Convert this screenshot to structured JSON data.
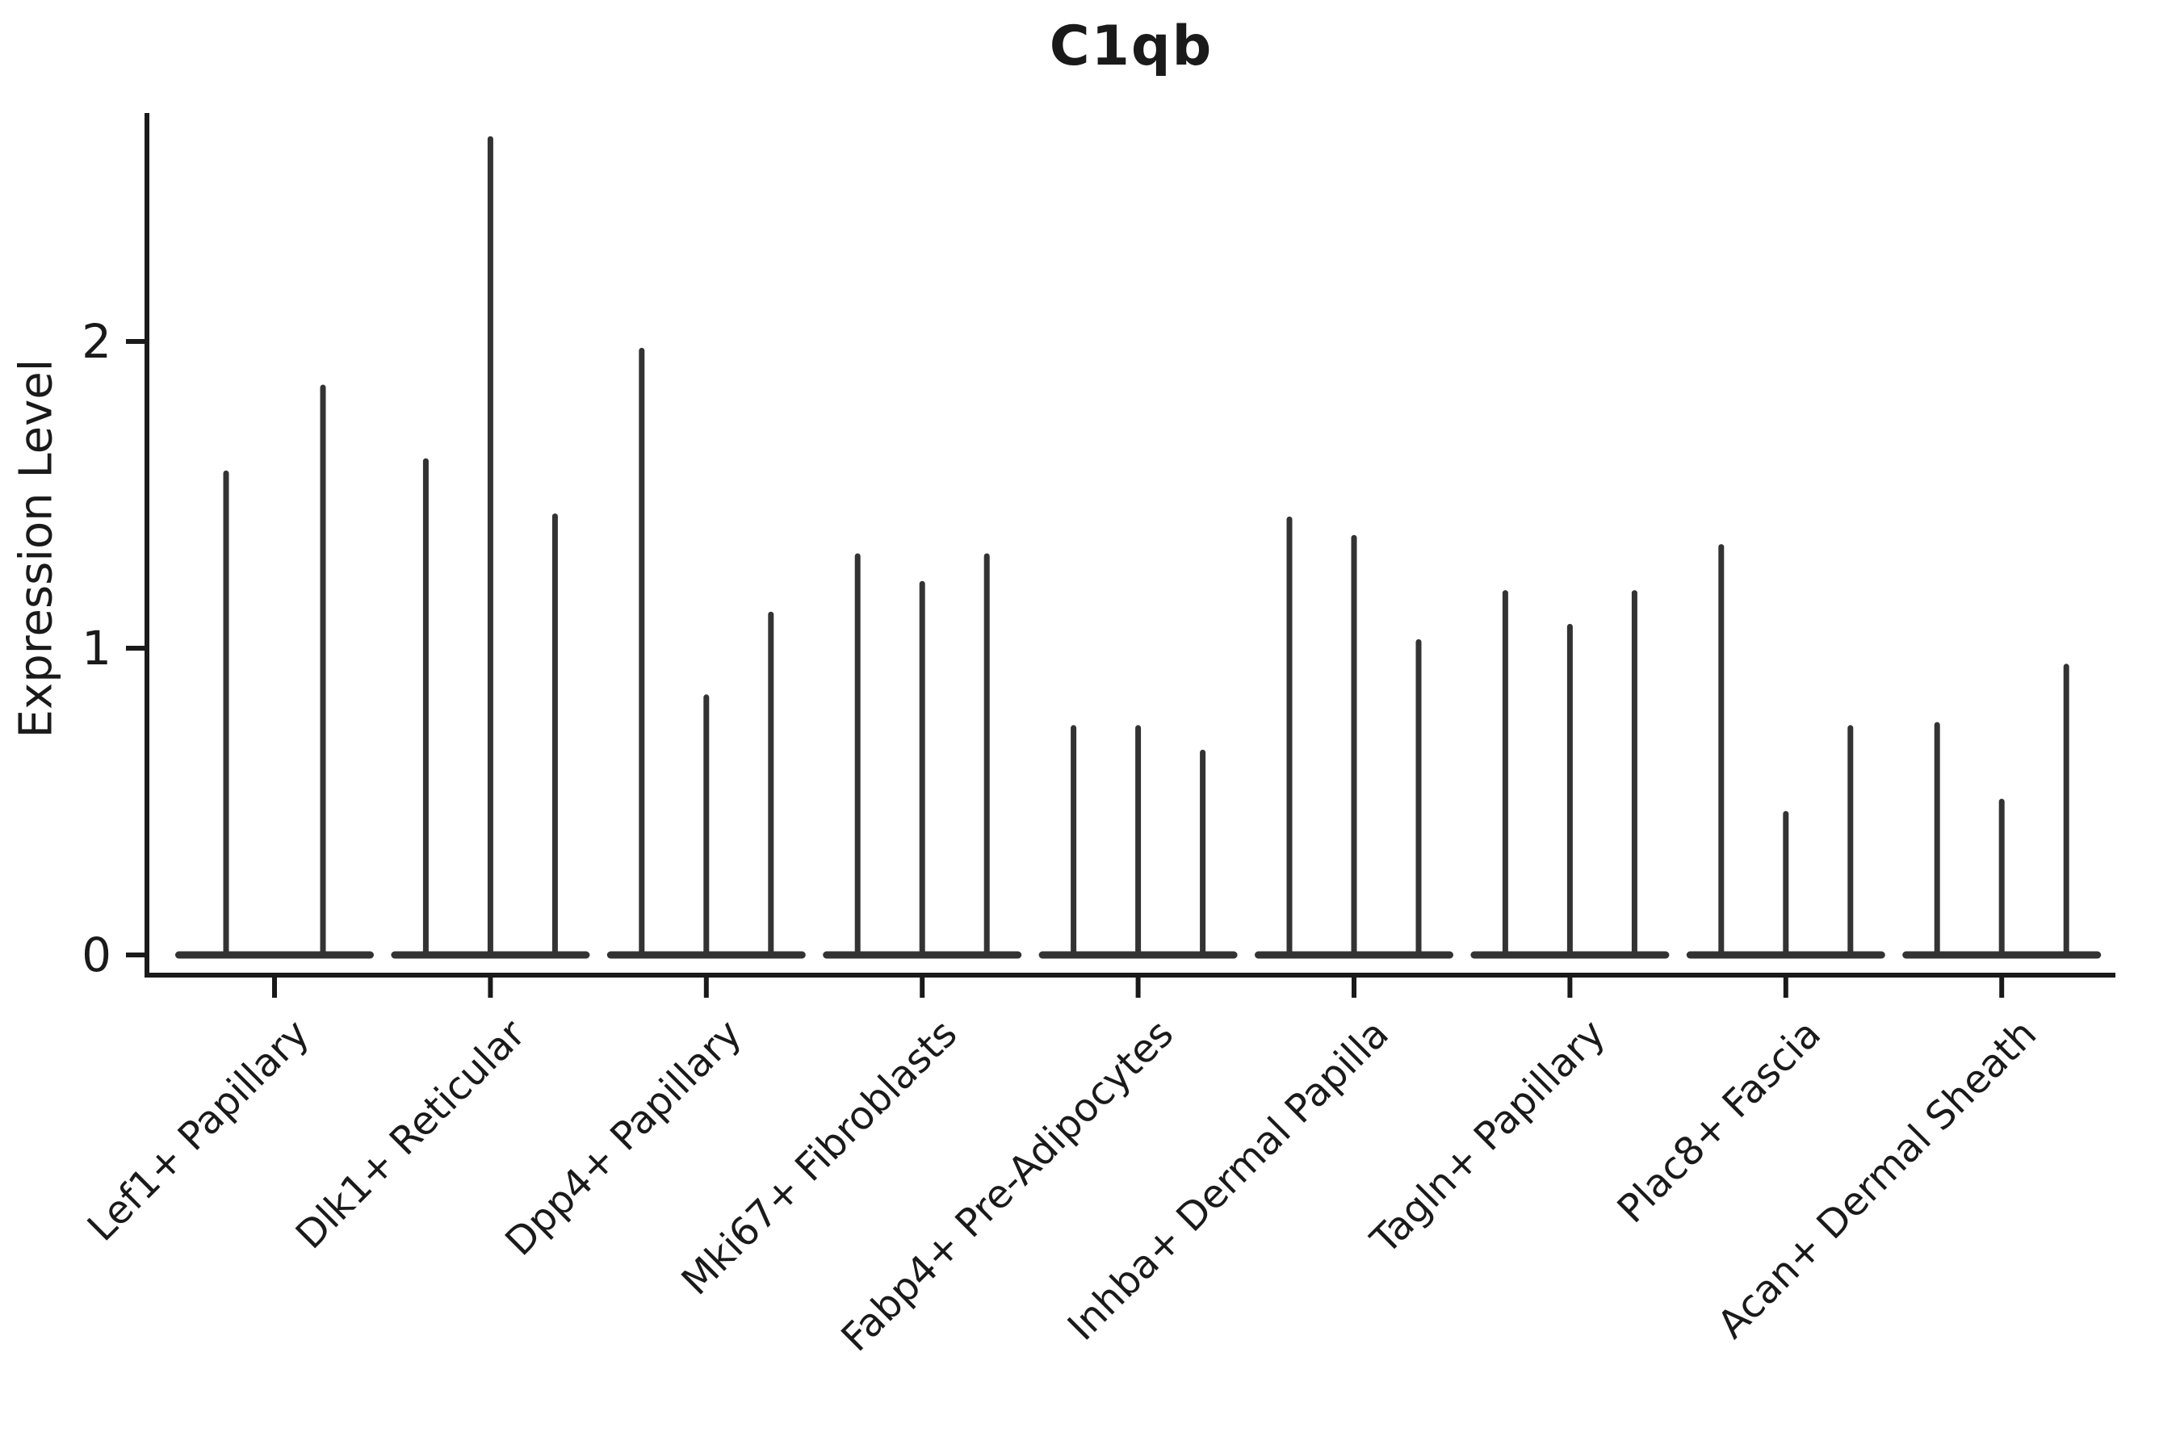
{
  "chart_data": {
    "type": "violin",
    "title": "C1qb",
    "ylabel": "Expression Level",
    "xlabel": "",
    "yticks": [
      0,
      1,
      2
    ],
    "ylim": [
      0,
      2.75
    ],
    "grid": false,
    "legend": null,
    "violin_color": "#333333",
    "axis_color": "#1a1a1a",
    "categories": [
      "Lef1+ Papillary",
      "Dlk1+ Reticular",
      "Dpp4+ Papillary",
      "Mki67+ Fibroblasts",
      "Fabp4+ Pre-Adipocytes",
      "Inhba+ Dermal Papilla",
      "Tagln+ Papillary",
      "Plac8+ Fascia",
      "Acan+ Dermal Sheath"
    ],
    "series": [
      {
        "category": "Lef1+ Papillary",
        "violin_maxima": [
          1.57,
          1.85
        ]
      },
      {
        "category": "Dlk1+ Reticular",
        "violin_maxima": [
          1.61,
          2.66,
          1.43
        ]
      },
      {
        "category": "Dpp4+ Papillary",
        "violin_maxima": [
          1.97,
          0.84,
          1.11
        ]
      },
      {
        "category": "Mki67+ Fibroblasts",
        "violin_maxima": [
          1.3,
          1.21,
          1.3
        ]
      },
      {
        "category": "Fabp4+ Pre-Adipocytes",
        "violin_maxima": [
          0.74,
          0.74,
          0.66
        ]
      },
      {
        "category": "Inhba+ Dermal Papilla",
        "violin_maxima": [
          1.42,
          1.36,
          1.02
        ]
      },
      {
        "category": "Tagln+ Papillary",
        "violin_maxima": [
          1.18,
          1.07,
          1.18
        ]
      },
      {
        "category": "Plac8+ Fascia",
        "violin_maxima": [
          1.33,
          0.46,
          0.74
        ]
      },
      {
        "category": "Acan+ Dermal Sheath",
        "violin_maxima": [
          0.75,
          0.5,
          0.94
        ]
      }
    ],
    "baseline_value": 0
  }
}
